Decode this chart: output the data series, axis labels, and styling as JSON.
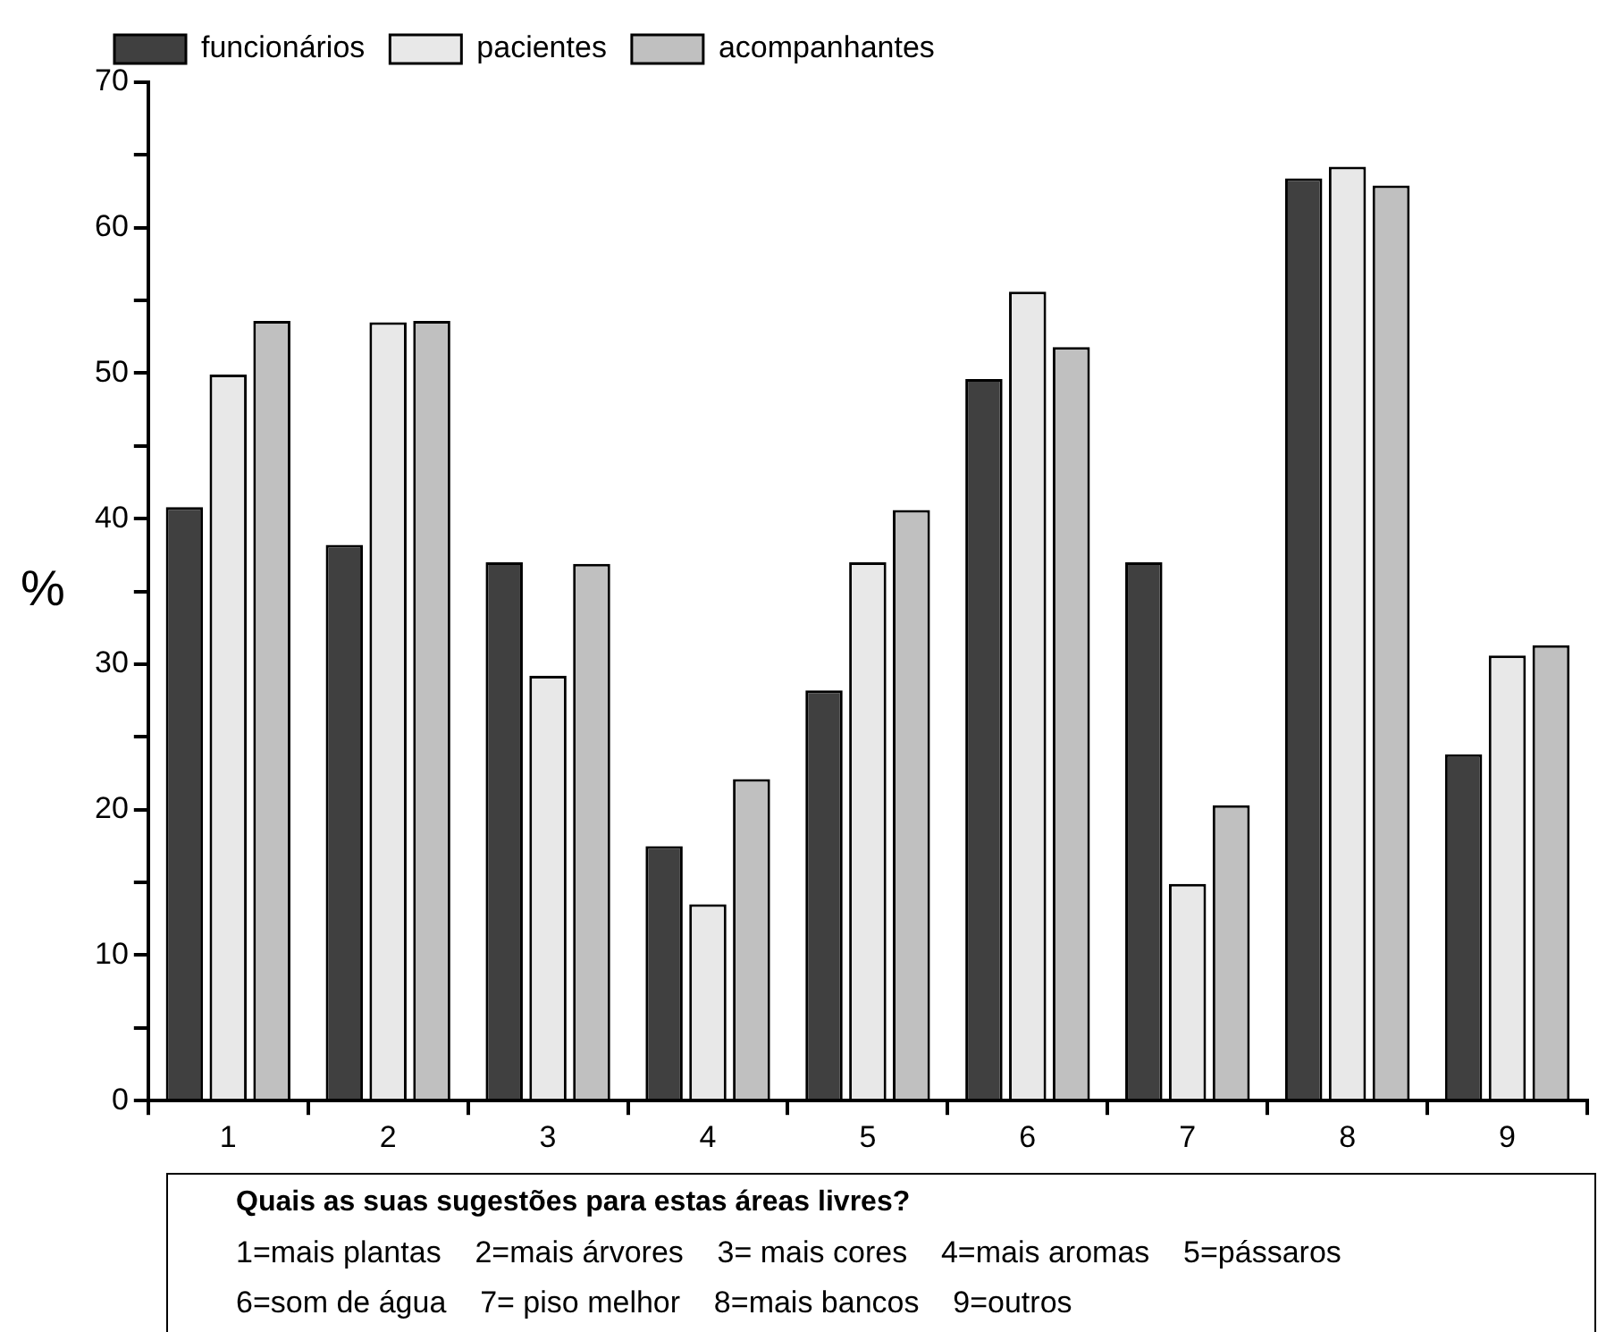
{
  "chart_data": {
    "type": "bar",
    "ylabel": "%",
    "categories": [
      "1",
      "2",
      "3",
      "4",
      "5",
      "6",
      "7",
      "8",
      "9"
    ],
    "series": [
      {
        "name": "funcionários",
        "color": "#404040",
        "values": [
          40.8,
          38.2,
          37.0,
          17.5,
          28.2,
          49.6,
          37.0,
          63.4,
          23.8
        ]
      },
      {
        "name": "pacientes",
        "color": "#e8e8e8",
        "values": [
          49.9,
          53.5,
          29.2,
          13.5,
          37.0,
          55.6,
          14.9,
          64.2,
          30.6
        ]
      },
      {
        "name": "acompanhantes",
        "color": "#c0c0c0",
        "values": [
          53.6,
          53.6,
          36.9,
          22.1,
          40.6,
          51.8,
          20.3,
          62.9,
          31.3
        ]
      }
    ],
    "ylim": [
      0,
      70
    ],
    "yticks": [
      0,
      {
        "value": 5,
        "label": null
      },
      10,
      {
        "value": 15,
        "label": null
      },
      20,
      {
        "value": 25,
        "label": null
      },
      30,
      {
        "value": 35,
        "label": null
      },
      40,
      {
        "value": 45,
        "label": null
      },
      50,
      {
        "value": 55,
        "label": null
      },
      60,
      {
        "value": 65,
        "label": null
      },
      70
    ],
    "grid": false,
    "legend": "top left",
    "annotations": [
      "Quais as suas sugestões para estas áreas livres?",
      "1=mais plantas    2=mais árvores    3= mais cores    4=mais aromas    5=pássaros",
      "6=som de água    7= piso melhor    8=mais bancos    9=outros"
    ]
  }
}
